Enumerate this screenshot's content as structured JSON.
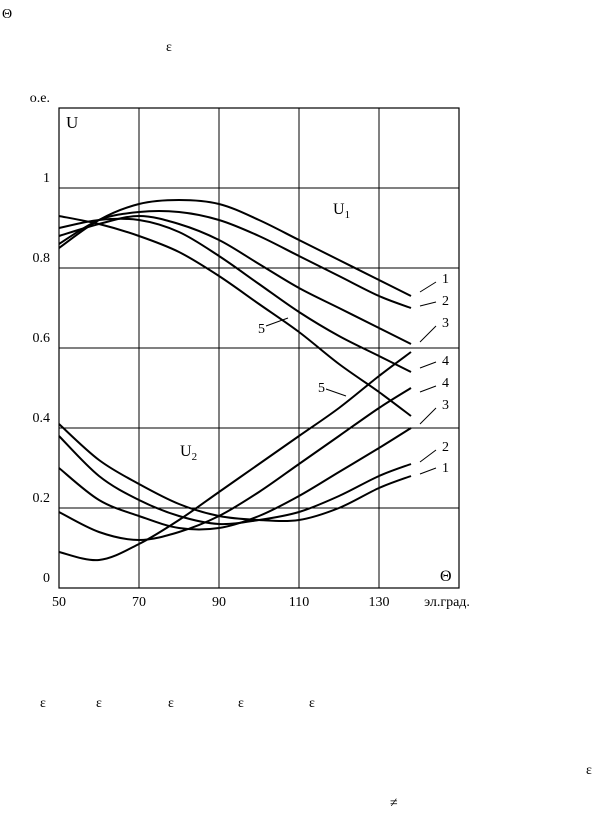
{
  "page": {
    "top_symbol": "Θ",
    "epsilon_top": "ε",
    "epsilon_row": [
      "ε",
      "ε",
      "ε",
      "ε",
      "ε"
    ],
    "epsilon_right": "ε",
    "not_equal": "≠"
  },
  "chart_data": {
    "type": "line",
    "x_label": "Θ",
    "y_label": "U",
    "xlim": [
      50,
      150
    ],
    "ylim": [
      0,
      1.2
    ],
    "xticks": [
      50,
      70,
      90,
      110,
      130,
      {
        "value": 150,
        "label": "эл.град."
      }
    ],
    "yticks": [
      0,
      0.2,
      0.4,
      0.6,
      0.8,
      1,
      {
        "value": 1.2,
        "label": "о.е."
      }
    ],
    "grid": true,
    "color": "#000000",
    "annotations": [
      {
        "text": "U",
        "sub": "1"
      },
      {
        "text": "U",
        "sub": "2"
      }
    ],
    "x": [
      50,
      60,
      70,
      80,
      90,
      100,
      110,
      120,
      130,
      138
    ],
    "series": [
      {
        "name": "1",
        "values": [
          0.85,
          0.92,
          0.96,
          0.97,
          0.96,
          0.92,
          0.87,
          0.82,
          0.77,
          0.73
        ]
      },
      {
        "name": "2",
        "values": [
          0.86,
          0.92,
          0.94,
          0.94,
          0.92,
          0.88,
          0.83,
          0.78,
          0.73,
          0.7
        ]
      },
      {
        "name": "3",
        "values": [
          0.88,
          0.91,
          0.93,
          0.91,
          0.87,
          0.81,
          0.75,
          0.7,
          0.65,
          0.61
        ]
      },
      {
        "name": "4",
        "values": [
          0.9,
          0.92,
          0.92,
          0.89,
          0.83,
          0.76,
          0.69,
          0.63,
          0.58,
          0.54
        ]
      },
      {
        "name": "5",
        "values": [
          0.93,
          0.91,
          0.88,
          0.84,
          0.78,
          0.71,
          0.64,
          0.56,
          0.49,
          0.43
        ]
      },
      {
        "name": "1",
        "values": [
          0.41,
          0.32,
          0.26,
          0.21,
          0.18,
          0.17,
          0.17,
          0.2,
          0.25,
          0.28
        ]
      },
      {
        "name": "2",
        "values": [
          0.38,
          0.28,
          0.22,
          0.18,
          0.16,
          0.17,
          0.19,
          0.23,
          0.28,
          0.31
        ]
      },
      {
        "name": "3",
        "values": [
          0.3,
          0.22,
          0.18,
          0.15,
          0.15,
          0.18,
          0.23,
          0.29,
          0.35,
          0.4
        ]
      },
      {
        "name": "4",
        "values": [
          0.19,
          0.14,
          0.12,
          0.14,
          0.18,
          0.24,
          0.31,
          0.38,
          0.45,
          0.5
        ]
      },
      {
        "name": "5",
        "values": [
          0.09,
          0.07,
          0.11,
          0.17,
          0.24,
          0.31,
          0.38,
          0.45,
          0.53,
          0.59
        ]
      }
    ]
  }
}
